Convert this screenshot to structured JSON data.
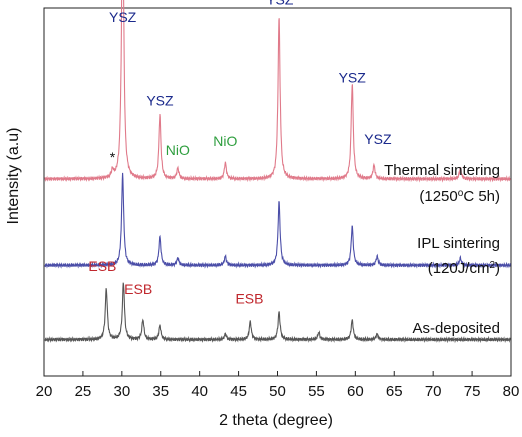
{
  "chart_data": {
    "type": "line",
    "title": "",
    "xlabel": "2 theta (degree)",
    "ylabel": "Intensity (a.u)",
    "xlim": [
      20,
      80
    ],
    "ylim": [
      0,
      10.4
    ],
    "xticks": [
      20,
      25,
      30,
      35,
      40,
      45,
      50,
      55,
      60,
      65,
      70,
      75,
      80
    ],
    "grid": false,
    "legend": "none",
    "series": [
      {
        "label_lines": [
          "Thermal sintering",
          "(1250",
          "o",
          "C 5h)"
        ],
        "color": "#e07a8a",
        "baseline": 5.57,
        "peaks": [
          [
            28.8,
            0.2
          ],
          [
            30.1,
            8.5
          ],
          [
            34.9,
            1.8
          ],
          [
            37.2,
            0.3
          ],
          [
            43.3,
            0.45
          ],
          [
            50.2,
            4.6
          ],
          [
            59.6,
            2.7
          ],
          [
            62.4,
            0.38
          ],
          [
            73.5,
            0.3
          ]
        ]
      },
      {
        "label_lines": [
          "IPL sintering",
          "(120J/cm",
          "2",
          ")"
        ],
        "color": "#4b4ea8",
        "baseline": 3.13,
        "peaks": [
          [
            30.1,
            2.6
          ],
          [
            34.9,
            0.8
          ],
          [
            37.2,
            0.2
          ],
          [
            43.3,
            0.25
          ],
          [
            50.2,
            1.8
          ],
          [
            59.6,
            1.1
          ],
          [
            62.8,
            0.25
          ],
          [
            73.5,
            0.2
          ]
        ]
      },
      {
        "label_lines": [
          "As-deposited"
        ],
        "color": "#555555",
        "baseline": 1.03,
        "peaks": [
          [
            28.0,
            1.45
          ],
          [
            30.2,
            1.6
          ],
          [
            32.7,
            0.55
          ],
          [
            34.9,
            0.4
          ],
          [
            43.3,
            0.15
          ],
          [
            46.5,
            0.5
          ],
          [
            50.2,
            0.78
          ],
          [
            55.3,
            0.2
          ],
          [
            59.6,
            0.55
          ],
          [
            62.8,
            0.15
          ]
        ]
      }
    ],
    "annotations": [
      {
        "text": "YSZ",
        "x": 30.1,
        "y": 10.0,
        "color": "#1b2a8c"
      },
      {
        "text": "YSZ",
        "x": 34.9,
        "y": 7.65,
        "color": "#1b2a8c"
      },
      {
        "text": "NiO",
        "x": 37.2,
        "y": 6.25,
        "color": "#2e9e3e"
      },
      {
        "text": "NiO",
        "x": 43.3,
        "y": 6.5,
        "color": "#2e9e3e"
      },
      {
        "text": "YSZ",
        "x": 50.3,
        "y": 10.5,
        "color": "#1b2a8c"
      },
      {
        "text": "YSZ",
        "x": 59.6,
        "y": 8.3,
        "color": "#1b2a8c"
      },
      {
        "text": "YSZ",
        "x": 62.9,
        "y": 6.55,
        "color": "#1b2a8c"
      },
      {
        "text": "*",
        "x": 28.8,
        "y": 6.05,
        "color": "#111111"
      },
      {
        "text": "ESB",
        "x": 27.5,
        "y": 2.97,
        "color": "#c0272d"
      },
      {
        "text": "ESB",
        "x": 32.1,
        "y": 2.32,
        "color": "#c0272d"
      },
      {
        "text": "ESB",
        "x": 46.4,
        "y": 2.05,
        "color": "#c0272d"
      }
    ]
  }
}
